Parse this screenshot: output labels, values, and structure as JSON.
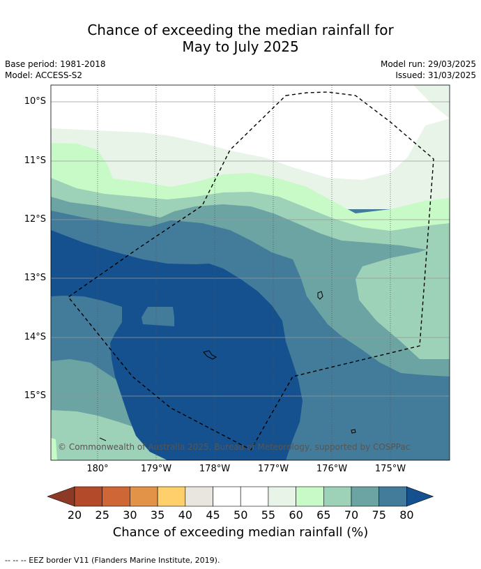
{
  "title_line1": "Chance of exceeding the median rainfall for",
  "title_line2": "May to July 2025",
  "base_period": "Base period: 1981-2018",
  "model": "Model: ACCESS-S2",
  "model_run": "Model run: 29/03/2025",
  "issued": "Issued: 31/03/2025",
  "lat_labels": [
    "10°S",
    "11°S",
    "12°S",
    "13°S",
    "14°S",
    "15°S"
  ],
  "lon_labels": [
    "180°",
    "179°W",
    "178°W",
    "177°W",
    "176°W",
    "175°W"
  ],
  "copyright": "© Commonwealth of Australia 2025, Bureau of Meteorology, supported by COSPPac",
  "colorbar": {
    "ticks": [
      "20",
      "25",
      "30",
      "35",
      "40",
      "45",
      "50",
      "55",
      "60",
      "65",
      "70",
      "75",
      "80"
    ],
    "colors": [
      "#8c3a26",
      "#b34a2a",
      "#cf6635",
      "#e29347",
      "#ffcf6b",
      "#e8e6df",
      "#ffffff",
      "#ffffff",
      "#e8f4e8",
      "#c8fac8",
      "#9dd2b8",
      "#6ca3a3",
      "#437b9a",
      "#15518e"
    ],
    "title": "Chance of exceeding median rainfall (%)"
  },
  "legend_note": "--  --  -- EEZ border V11 (Flanders Marine Institute, 2019).",
  "map_colors": {
    "p55_60": "#e8f4e8",
    "p60_65": "#c8fac8",
    "p65_70": "#9dd2b8",
    "p70_75": "#6ca3a3",
    "p75_80": "#437b9a",
    "p80plus": "#15518e"
  }
}
